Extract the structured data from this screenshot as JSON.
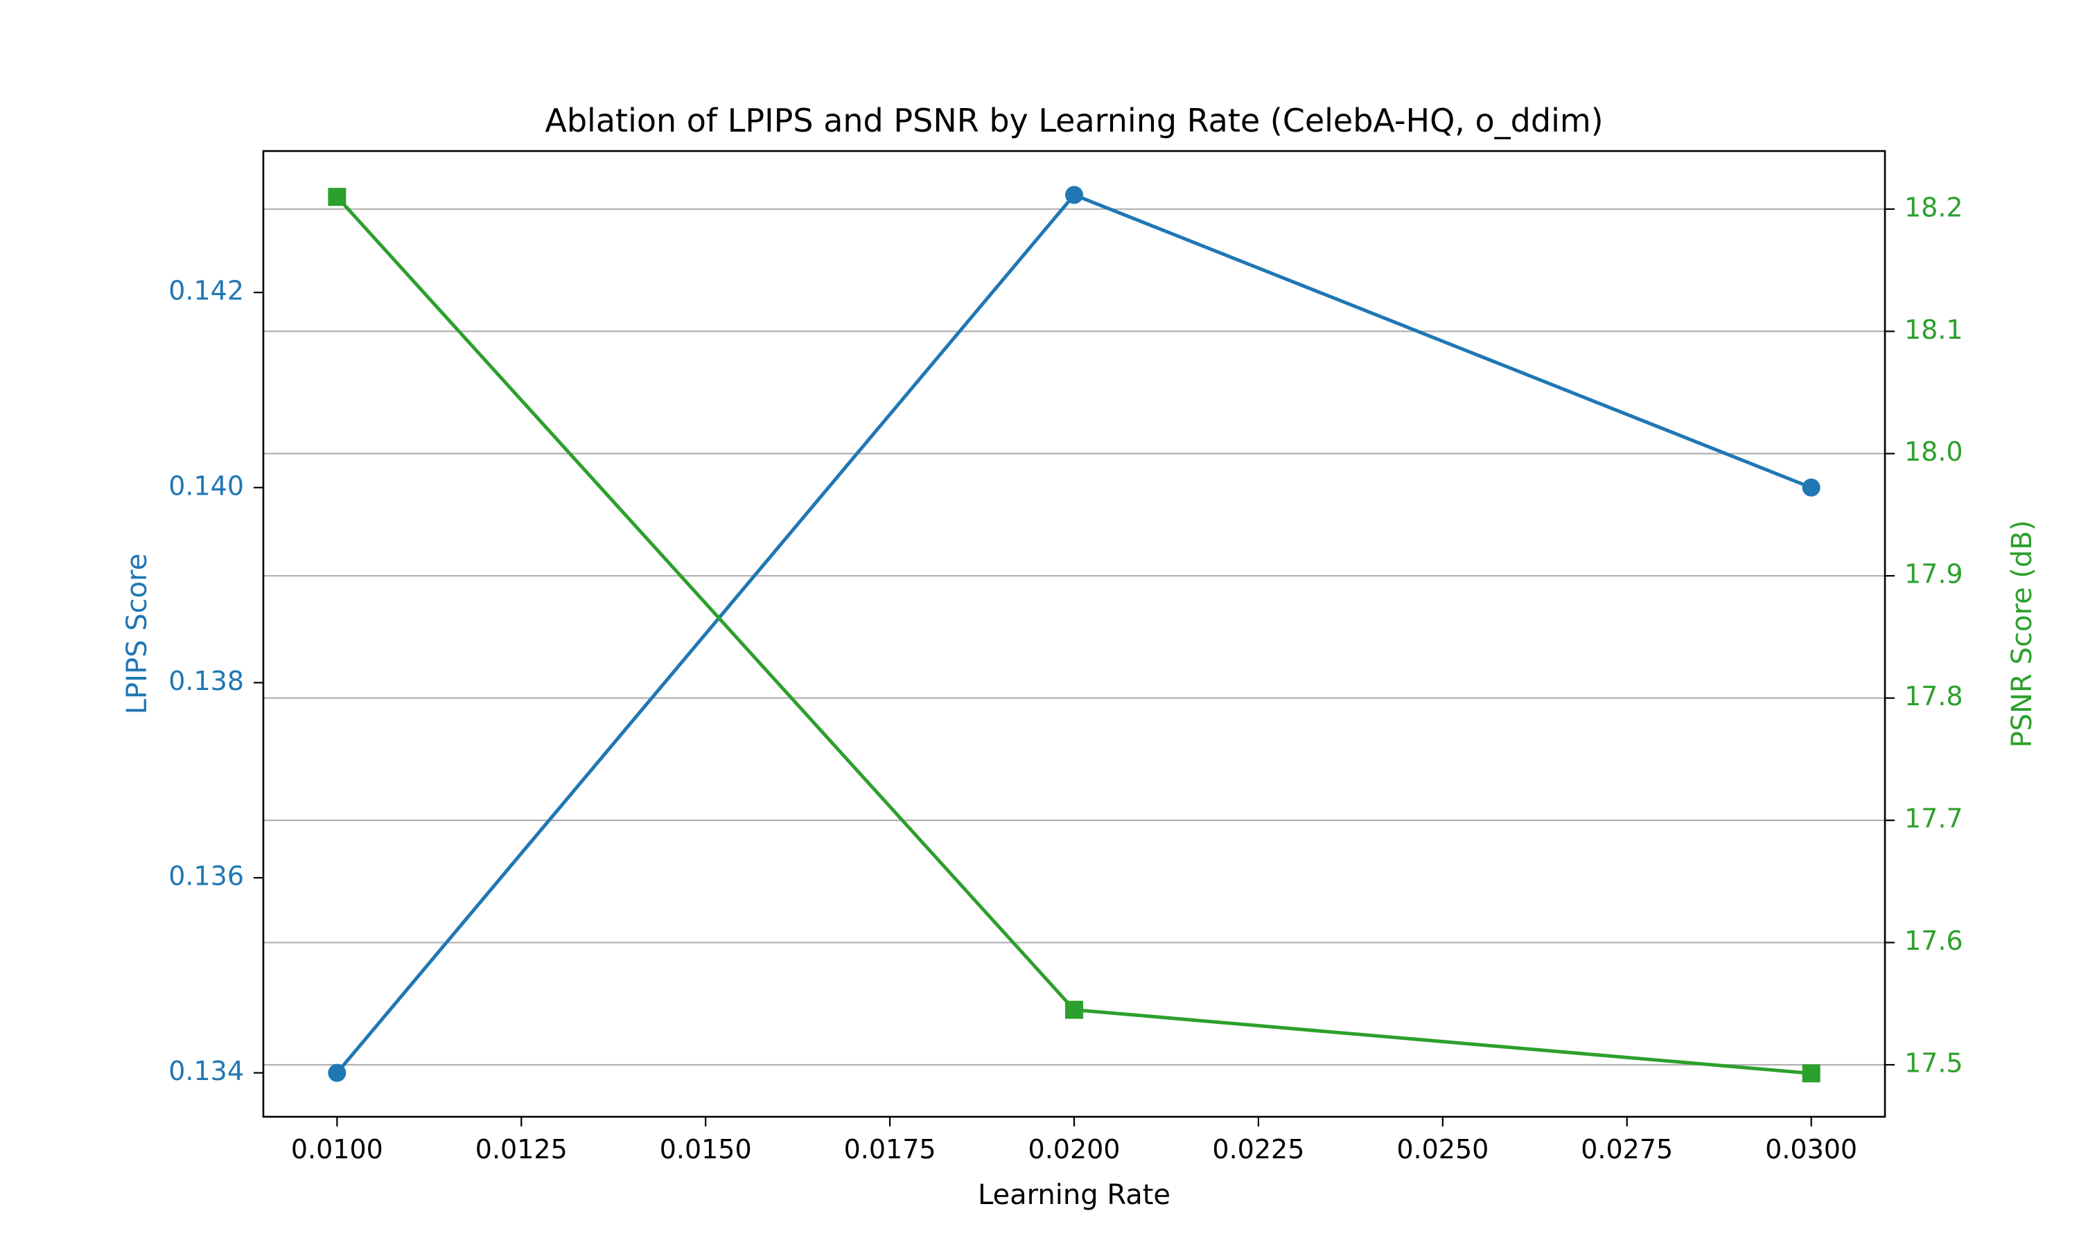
{
  "chart_data": {
    "type": "line",
    "title": "Ablation of LPIPS and PSNR by Learning Rate (CelebA-HQ, o_ddim)",
    "xlabel": "Learning Rate",
    "y1label": "LPIPS Score",
    "y2label": "PSNR Score (dB)",
    "xlim": [
      0.009,
      0.031
    ],
    "y1lim": [
      0.13355,
      0.14345
    ],
    "y2lim": [
      17.4575,
      18.2475
    ],
    "xticks": [
      "0.0100",
      "0.0125",
      "0.0150",
      "0.0175",
      "0.0200",
      "0.0225",
      "0.0250",
      "0.0275",
      "0.0300"
    ],
    "y1ticks": [
      "0.134",
      "0.136",
      "0.138",
      "0.140",
      "0.142"
    ],
    "y2ticks": [
      "17.5",
      "17.6",
      "17.7",
      "17.8",
      "17.9",
      "18.0",
      "18.1",
      "18.2"
    ],
    "grid": "horizontal on right axis",
    "series": [
      {
        "name": "LPIPS",
        "axis": "left",
        "color": "#1f77b4",
        "marker": "circle",
        "x": [
          0.01,
          0.02,
          0.03
        ],
        "y": [
          0.134,
          0.143,
          0.14
        ]
      },
      {
        "name": "PSNR",
        "axis": "right",
        "color": "#2ca02c",
        "marker": "square",
        "x": [
          0.01,
          0.02,
          0.03
        ],
        "y": [
          18.21,
          17.545,
          17.493
        ]
      }
    ]
  }
}
